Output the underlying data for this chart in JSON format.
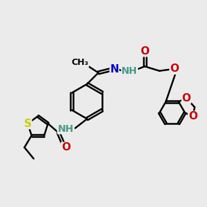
{
  "bg_color": "#ebebeb",
  "atom_colors": {
    "N": "#0000cd",
    "O": "#cc0000",
    "S": "#cccc00",
    "NH": "#4a9a8a",
    "C": "#000000"
  },
  "bond_color": "#000000",
  "bond_width": 1.8,
  "font_size": 10
}
